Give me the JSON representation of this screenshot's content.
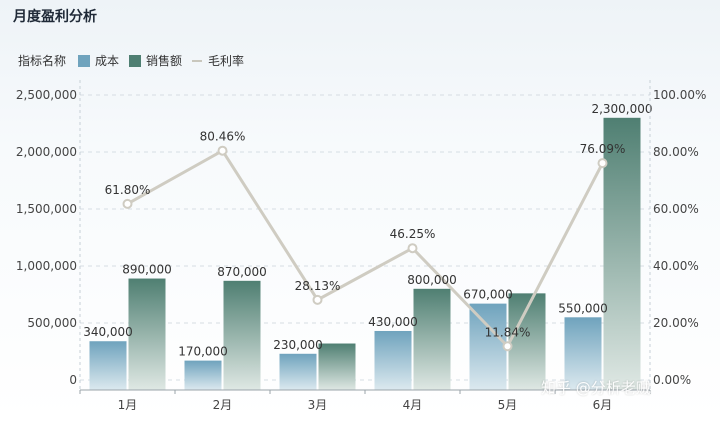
{
  "title": "月度盈利分析",
  "legend": {
    "label": "指标名称",
    "items": [
      {
        "name": "成本",
        "color": "#6fa3bd",
        "kind": "bar"
      },
      {
        "name": "销售额",
        "color": "#4f7f72",
        "kind": "bar"
      },
      {
        "name": "毛利率",
        "color": "#c9c7bd",
        "kind": "line"
      }
    ]
  },
  "watermark": "知乎 @分析老贼",
  "colors": {
    "cost": "#6fa3bd",
    "sales": "#4f7f72",
    "margin": "#cfccc2"
  },
  "chart_data": {
    "type": "bar",
    "title": "月度盈利分析",
    "categories": [
      "1月",
      "2月",
      "3月",
      "4月",
      "5月",
      "6月"
    ],
    "series": [
      {
        "name": "成本",
        "values": [
          340000,
          170000,
          230000,
          430000,
          670000,
          550000
        ],
        "labels": [
          "340,000",
          "170,000",
          "230,000",
          "430,000",
          "670,000",
          "550,000"
        ]
      },
      {
        "name": "销售额",
        "values": [
          890000,
          870000,
          320000,
          800000,
          760000,
          2300000
        ],
        "labels": [
          "890,000",
          "870,000",
          "",
          "800,000",
          "",
          "2,300,000"
        ]
      },
      {
        "name": "毛利率",
        "type": "line",
        "axis": "right",
        "values": [
          61.8,
          80.46,
          28.13,
          46.25,
          11.84,
          76.09
        ],
        "labels": [
          "61.80%",
          "80.46%",
          "28.13%",
          "46.25%",
          "11.84%",
          "76.09%"
        ]
      }
    ],
    "y_left": {
      "ylim": [
        0,
        2500000
      ],
      "ticks": [
        "0",
        "500,000",
        "1,000,000",
        "1,500,000",
        "2,000,000",
        "2,500,000"
      ]
    },
    "y_right": {
      "ylim": [
        0,
        100
      ],
      "ticks": [
        "0.00%",
        "20.00%",
        "40.00%",
        "60.00%",
        "80.00%",
        "100.00%"
      ]
    },
    "grid": true,
    "legend_position": "top-left"
  }
}
